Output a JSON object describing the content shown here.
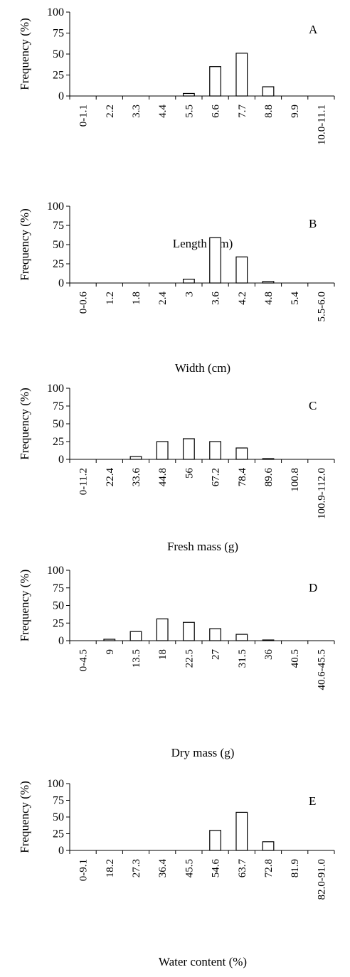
{
  "chart_data": [
    {
      "type": "bar",
      "panel_label": "A",
      "xlabel": "Length (cm)",
      "ylabel": "Frequency (%)",
      "ylim": [
        0,
        100
      ],
      "yticks": [
        0,
        25,
        50,
        75,
        100
      ],
      "categories": [
        "0-1.1",
        "2.2",
        "3.3",
        "4.4",
        "5.5",
        "6.6",
        "7.7",
        "8.8",
        "9.9",
        "10.0-11.1"
      ],
      "values": [
        0,
        0,
        0,
        0,
        3,
        35,
        51,
        11,
        0,
        0
      ]
    },
    {
      "type": "bar",
      "panel_label": "B",
      "xlabel": "Width (cm)",
      "ylabel": "Frequency (%)",
      "ylim": [
        0,
        100
      ],
      "yticks": [
        0,
        25,
        50,
        75,
        100
      ],
      "categories": [
        "0-0.6",
        "1.2",
        "1.8",
        "2.4",
        "3",
        "3.6",
        "4.2",
        "4.8",
        "5.4",
        "5.5-6.0"
      ],
      "values": [
        0,
        0,
        0,
        0,
        5,
        59,
        34,
        2,
        0,
        0
      ]
    },
    {
      "type": "bar",
      "panel_label": "C",
      "xlabel": "Fresh mass (g)",
      "ylabel": "Frequency (%)",
      "ylim": [
        0,
        100
      ],
      "yticks": [
        0,
        25,
        50,
        75,
        100
      ],
      "categories": [
        "0-11.2",
        "22.4",
        "33.6",
        "44.8",
        "56",
        "67.2",
        "78.4",
        "89.6",
        "100.8",
        "100.9-112.0"
      ],
      "values": [
        0,
        0,
        4,
        25,
        29,
        25,
        16,
        1,
        0,
        0
      ]
    },
    {
      "type": "bar",
      "panel_label": "D",
      "xlabel": "Dry mass (g)",
      "ylabel": "Frequency (%)",
      "ylim": [
        0,
        100
      ],
      "yticks": [
        0,
        25,
        50,
        75,
        100
      ],
      "categories": [
        "0-4.5",
        "9",
        "13.5",
        "18",
        "22.5",
        "27",
        "31.5",
        "36",
        "40.5",
        "40.6-45.5"
      ],
      "values": [
        0,
        2,
        13,
        31,
        26,
        17,
        9,
        1,
        0,
        0
      ]
    },
    {
      "type": "bar",
      "panel_label": "E",
      "xlabel": "Water content (%)",
      "ylabel": "Frequency (%)",
      "ylim": [
        0,
        100
      ],
      "yticks": [
        0,
        25,
        50,
        75,
        100
      ],
      "categories": [
        "0-9.1",
        "18.2",
        "27.3",
        "36.4",
        "45.5",
        "54.6",
        "63.7",
        "72.8",
        "81.9",
        "82.0-91.0"
      ],
      "values": [
        0,
        0,
        0,
        0,
        0,
        30,
        57,
        13,
        0,
        0
      ]
    }
  ]
}
